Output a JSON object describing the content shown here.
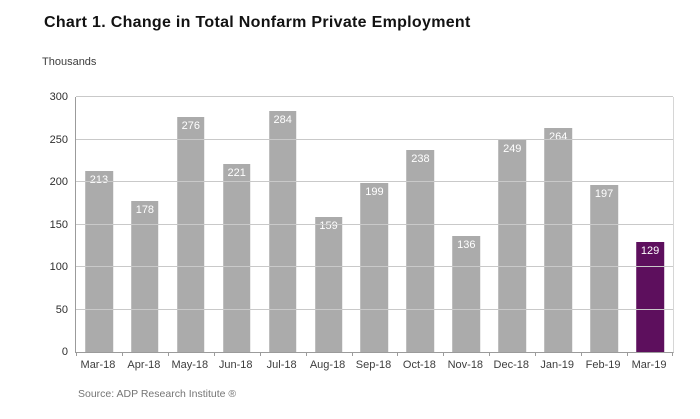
{
  "chart_data": {
    "type": "bar",
    "title": "Chart 1. Change in Total Nonfarm Private Employment",
    "ylabel": "Thousands",
    "xlabel": "",
    "source": "Source: ADP Research Institute ®",
    "categories": [
      "Mar-18",
      "Apr-18",
      "May-18",
      "Jun-18",
      "Jul-18",
      "Aug-18",
      "Sep-18",
      "Oct-18",
      "Nov-18",
      "Dec-18",
      "Jan-19",
      "Feb-19",
      "Mar-19"
    ],
    "values": [
      213,
      178,
      276,
      221,
      284,
      159,
      199,
      238,
      136,
      249,
      264,
      197,
      129
    ],
    "highlight_index": 12,
    "ylim": [
      0,
      300
    ],
    "ytick_step": 50,
    "grid": "horizontal",
    "legend_position": "none",
    "colors": {
      "bar": "#ABABAB",
      "highlight_bar": "#5D0F5D",
      "value_label": "#FFFFFF",
      "gridline": "#C9C9C9",
      "axis": "#9B9B9B",
      "background": "#FFFFFF"
    }
  }
}
